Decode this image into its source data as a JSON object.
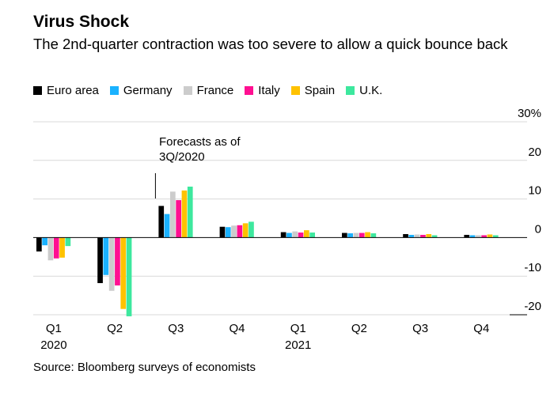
{
  "chart_data": {
    "type": "bar",
    "title": "Virus Shock",
    "subtitle": "The 2nd-quarter contraction was too severe to allow a quick bounce back",
    "source": "Source: Bloomberg surveys of economists",
    "annotation": "Forecasts as of 3Q/2020",
    "annotation_lines": [
      "Forecasts as of",
      "3Q/2020"
    ],
    "categories": [
      "Q1",
      "Q2",
      "Q3",
      "Q4",
      "Q1",
      "Q2",
      "Q3",
      "Q4"
    ],
    "category_years": [
      "2020",
      "",
      "",
      "",
      "2021",
      "",
      "",
      ""
    ],
    "yticks": [
      30,
      20,
      10,
      0,
      -10,
      -20
    ],
    "ytick_labels": [
      "30%",
      "20",
      "10",
      "0",
      "-10",
      "-20"
    ],
    "ylim": [
      -20,
      30
    ],
    "grid": true,
    "legend_position": "top-left",
    "series": [
      {
        "name": "Euro area",
        "color": "#000000",
        "values": [
          -3.6,
          -11.8,
          8.2,
          2.8,
          1.4,
          1.2,
          0.9,
          0.7
        ]
      },
      {
        "name": "Germany",
        "color": "#1ab2ff",
        "values": [
          -2.0,
          -9.7,
          6.1,
          2.7,
          1.2,
          1.1,
          0.7,
          0.6
        ]
      },
      {
        "name": "France",
        "color": "#cccccc",
        "values": [
          -5.9,
          -13.8,
          11.9,
          3.1,
          1.6,
          1.2,
          0.8,
          0.6
        ]
      },
      {
        "name": "Italy",
        "color": "#ff0f91",
        "values": [
          -5.4,
          -12.4,
          9.7,
          3.2,
          1.3,
          1.2,
          0.7,
          0.6
        ]
      },
      {
        "name": "Spain",
        "color": "#ffc200",
        "values": [
          -5.2,
          -18.5,
          12.2,
          3.7,
          1.9,
          1.4,
          0.9,
          0.8
        ]
      },
      {
        "name": "U.K.",
        "color": "#3de89e",
        "values": [
          -2.2,
          -20.4,
          13.2,
          4.1,
          1.3,
          1.1,
          0.6,
          0.6
        ]
      }
    ]
  }
}
